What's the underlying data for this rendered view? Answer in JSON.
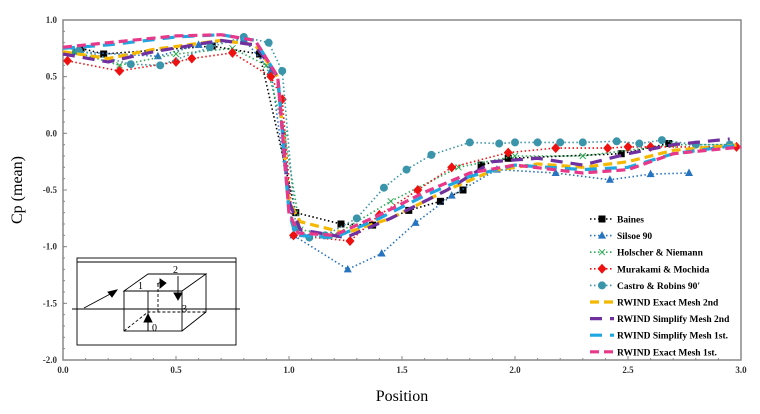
{
  "chart_data": {
    "type": "line",
    "title": "",
    "xlabel": "Position",
    "ylabel": "Cp (mean)",
    "xlim": [
      0.0,
      3.0
    ],
    "ylim": [
      -2.0,
      1.0
    ],
    "xticks": [
      "0.0",
      "0.5",
      "1.0",
      "1.5",
      "2.0",
      "2.5",
      "3.0"
    ],
    "yticks": [
      "1.0",
      "0.5",
      "0.0",
      "-0.5",
      "-1.0",
      "-1.5",
      "-2.0"
    ],
    "grid": false,
    "legend_position": "bottom-right",
    "series": [
      {
        "name": "Baines",
        "color": "#000000",
        "style": "dotted",
        "marker": "square",
        "x": [
          0.08,
          0.18,
          0.66,
          0.87,
          1.03,
          1.23,
          1.37,
          1.53,
          1.67,
          1.77,
          1.85,
          1.97,
          2.47,
          2.68
        ],
        "y": [
          0.75,
          0.7,
          0.77,
          0.7,
          -0.7,
          -0.8,
          -0.81,
          -0.68,
          -0.6,
          -0.5,
          -0.28,
          -0.22,
          -0.18,
          -0.09
        ]
      },
      {
        "name": "Silsoe 90",
        "color": "#2673c0",
        "style": "dotted",
        "marker": "triangle",
        "x": [
          0.05,
          0.42,
          0.6,
          0.8,
          0.92,
          1.02,
          1.26,
          1.41,
          1.56,
          1.72,
          1.92,
          2.18,
          2.42,
          2.6,
          2.77
        ],
        "y": [
          0.72,
          0.68,
          0.78,
          0.83,
          0.55,
          -0.9,
          -1.2,
          -1.06,
          -0.79,
          -0.55,
          -0.32,
          -0.35,
          -0.41,
          -0.36,
          -0.35
        ]
      },
      {
        "name": "Holscher & Niemann",
        "color": "#2eaa55",
        "style": "dotted",
        "marker": "x",
        "x": [
          0.05,
          0.25,
          0.5,
          0.75,
          0.9,
          0.98,
          1.05,
          1.2,
          1.45,
          1.75,
          2.0,
          2.3,
          2.7,
          2.95
        ],
        "y": [
          0.72,
          0.6,
          0.7,
          0.75,
          0.6,
          0.0,
          -0.85,
          -0.9,
          -0.6,
          -0.3,
          -0.2,
          -0.2,
          -0.1,
          -0.1
        ]
      },
      {
        "name": "Murakami & Mochida",
        "color": "#ee1111",
        "style": "dotted",
        "marker": "diamond",
        "x": [
          0.02,
          0.25,
          0.5,
          0.57,
          0.75,
          0.92,
          0.97,
          1.02,
          1.27,
          1.4,
          1.57,
          1.72,
          1.97,
          2.18,
          2.41,
          2.5,
          2.6,
          2.98
        ],
        "y": [
          0.64,
          0.55,
          0.63,
          0.66,
          0.71,
          0.5,
          0.3,
          -0.9,
          -0.95,
          -0.72,
          -0.5,
          -0.3,
          -0.17,
          -0.13,
          -0.13,
          -0.12,
          -0.12,
          -0.12
        ]
      },
      {
        "name": "Castro & Robins 90'",
        "color": "#3b95aa",
        "style": "dotted",
        "marker": "circle",
        "x": [
          0.07,
          0.3,
          0.43,
          0.65,
          0.8,
          0.91,
          0.97,
          1.03,
          1.09,
          1.16,
          1.3,
          1.42,
          1.52,
          1.63,
          1.8,
          1.93,
          2.0,
          2.1,
          2.2,
          2.3,
          2.45,
          2.55,
          2.65,
          2.8,
          2.95
        ],
        "y": [
          0.73,
          0.61,
          0.6,
          0.76,
          0.85,
          0.8,
          0.55,
          -0.83,
          -0.92,
          -0.9,
          -0.75,
          -0.48,
          -0.32,
          -0.19,
          -0.08,
          -0.09,
          -0.08,
          -0.08,
          -0.08,
          -0.08,
          -0.07,
          -0.09,
          -0.06,
          -0.1,
          -0.1
        ]
      },
      {
        "name": "RWIND Exact Mesh 2nd",
        "color": "#f5b800",
        "style": "dashed",
        "marker": "none",
        "x": [
          0.0,
          0.2,
          0.4,
          0.7,
          0.85,
          0.95,
          1.0,
          1.05,
          1.25,
          1.45,
          1.7,
          1.9,
          2.1,
          2.3,
          2.5,
          2.7,
          3.0
        ],
        "y": [
          0.72,
          0.66,
          0.74,
          0.82,
          0.78,
          0.5,
          -0.6,
          -0.78,
          -0.88,
          -0.75,
          -0.5,
          -0.33,
          -0.27,
          -0.3,
          -0.25,
          -0.15,
          -0.1
        ]
      },
      {
        "name": "RWIND Simplify Mesh  2nd",
        "color": "#7030a0",
        "style": "longdash",
        "marker": "none",
        "x": [
          0.0,
          0.2,
          0.4,
          0.7,
          0.85,
          0.95,
          1.0,
          1.05,
          1.25,
          1.45,
          1.7,
          1.9,
          2.1,
          2.3,
          2.5,
          2.7,
          2.95
        ],
        "y": [
          0.7,
          0.63,
          0.72,
          0.82,
          0.78,
          0.5,
          -0.6,
          -0.85,
          -0.92,
          -0.75,
          -0.5,
          -0.25,
          -0.22,
          -0.28,
          -0.18,
          -0.1,
          -0.05
        ]
      },
      {
        "name": "RWIND Simplify Mesh 1st.",
        "color": "#1ea7e1",
        "style": "longdash",
        "marker": "none",
        "x": [
          0.0,
          0.2,
          0.5,
          0.7,
          0.85,
          0.95,
          1.0,
          1.03,
          1.2,
          1.4,
          1.6,
          1.8,
          2.0,
          2.3,
          2.5,
          2.7,
          3.0
        ],
        "y": [
          0.75,
          0.78,
          0.85,
          0.87,
          0.82,
          0.5,
          -0.7,
          -0.9,
          -0.92,
          -0.75,
          -0.55,
          -0.38,
          -0.28,
          -0.32,
          -0.3,
          -0.18,
          -0.1
        ]
      },
      {
        "name": "RWIND Exact Mesh 1st.",
        "color": "#e8388a",
        "style": "dashed",
        "marker": "none",
        "x": [
          0.0,
          0.2,
          0.5,
          0.7,
          0.85,
          0.95,
          1.0,
          1.04,
          1.2,
          1.4,
          1.6,
          1.8,
          2.0,
          2.3,
          2.5,
          2.7,
          3.0
        ],
        "y": [
          0.76,
          0.8,
          0.86,
          0.87,
          0.82,
          0.5,
          -0.7,
          -0.88,
          -0.9,
          -0.72,
          -0.52,
          -0.35,
          -0.28,
          -0.35,
          -0.32,
          -0.18,
          -0.12
        ]
      }
    ],
    "inset_diagram": {
      "labels": [
        "0",
        "1",
        "2",
        "3"
      ]
    }
  }
}
